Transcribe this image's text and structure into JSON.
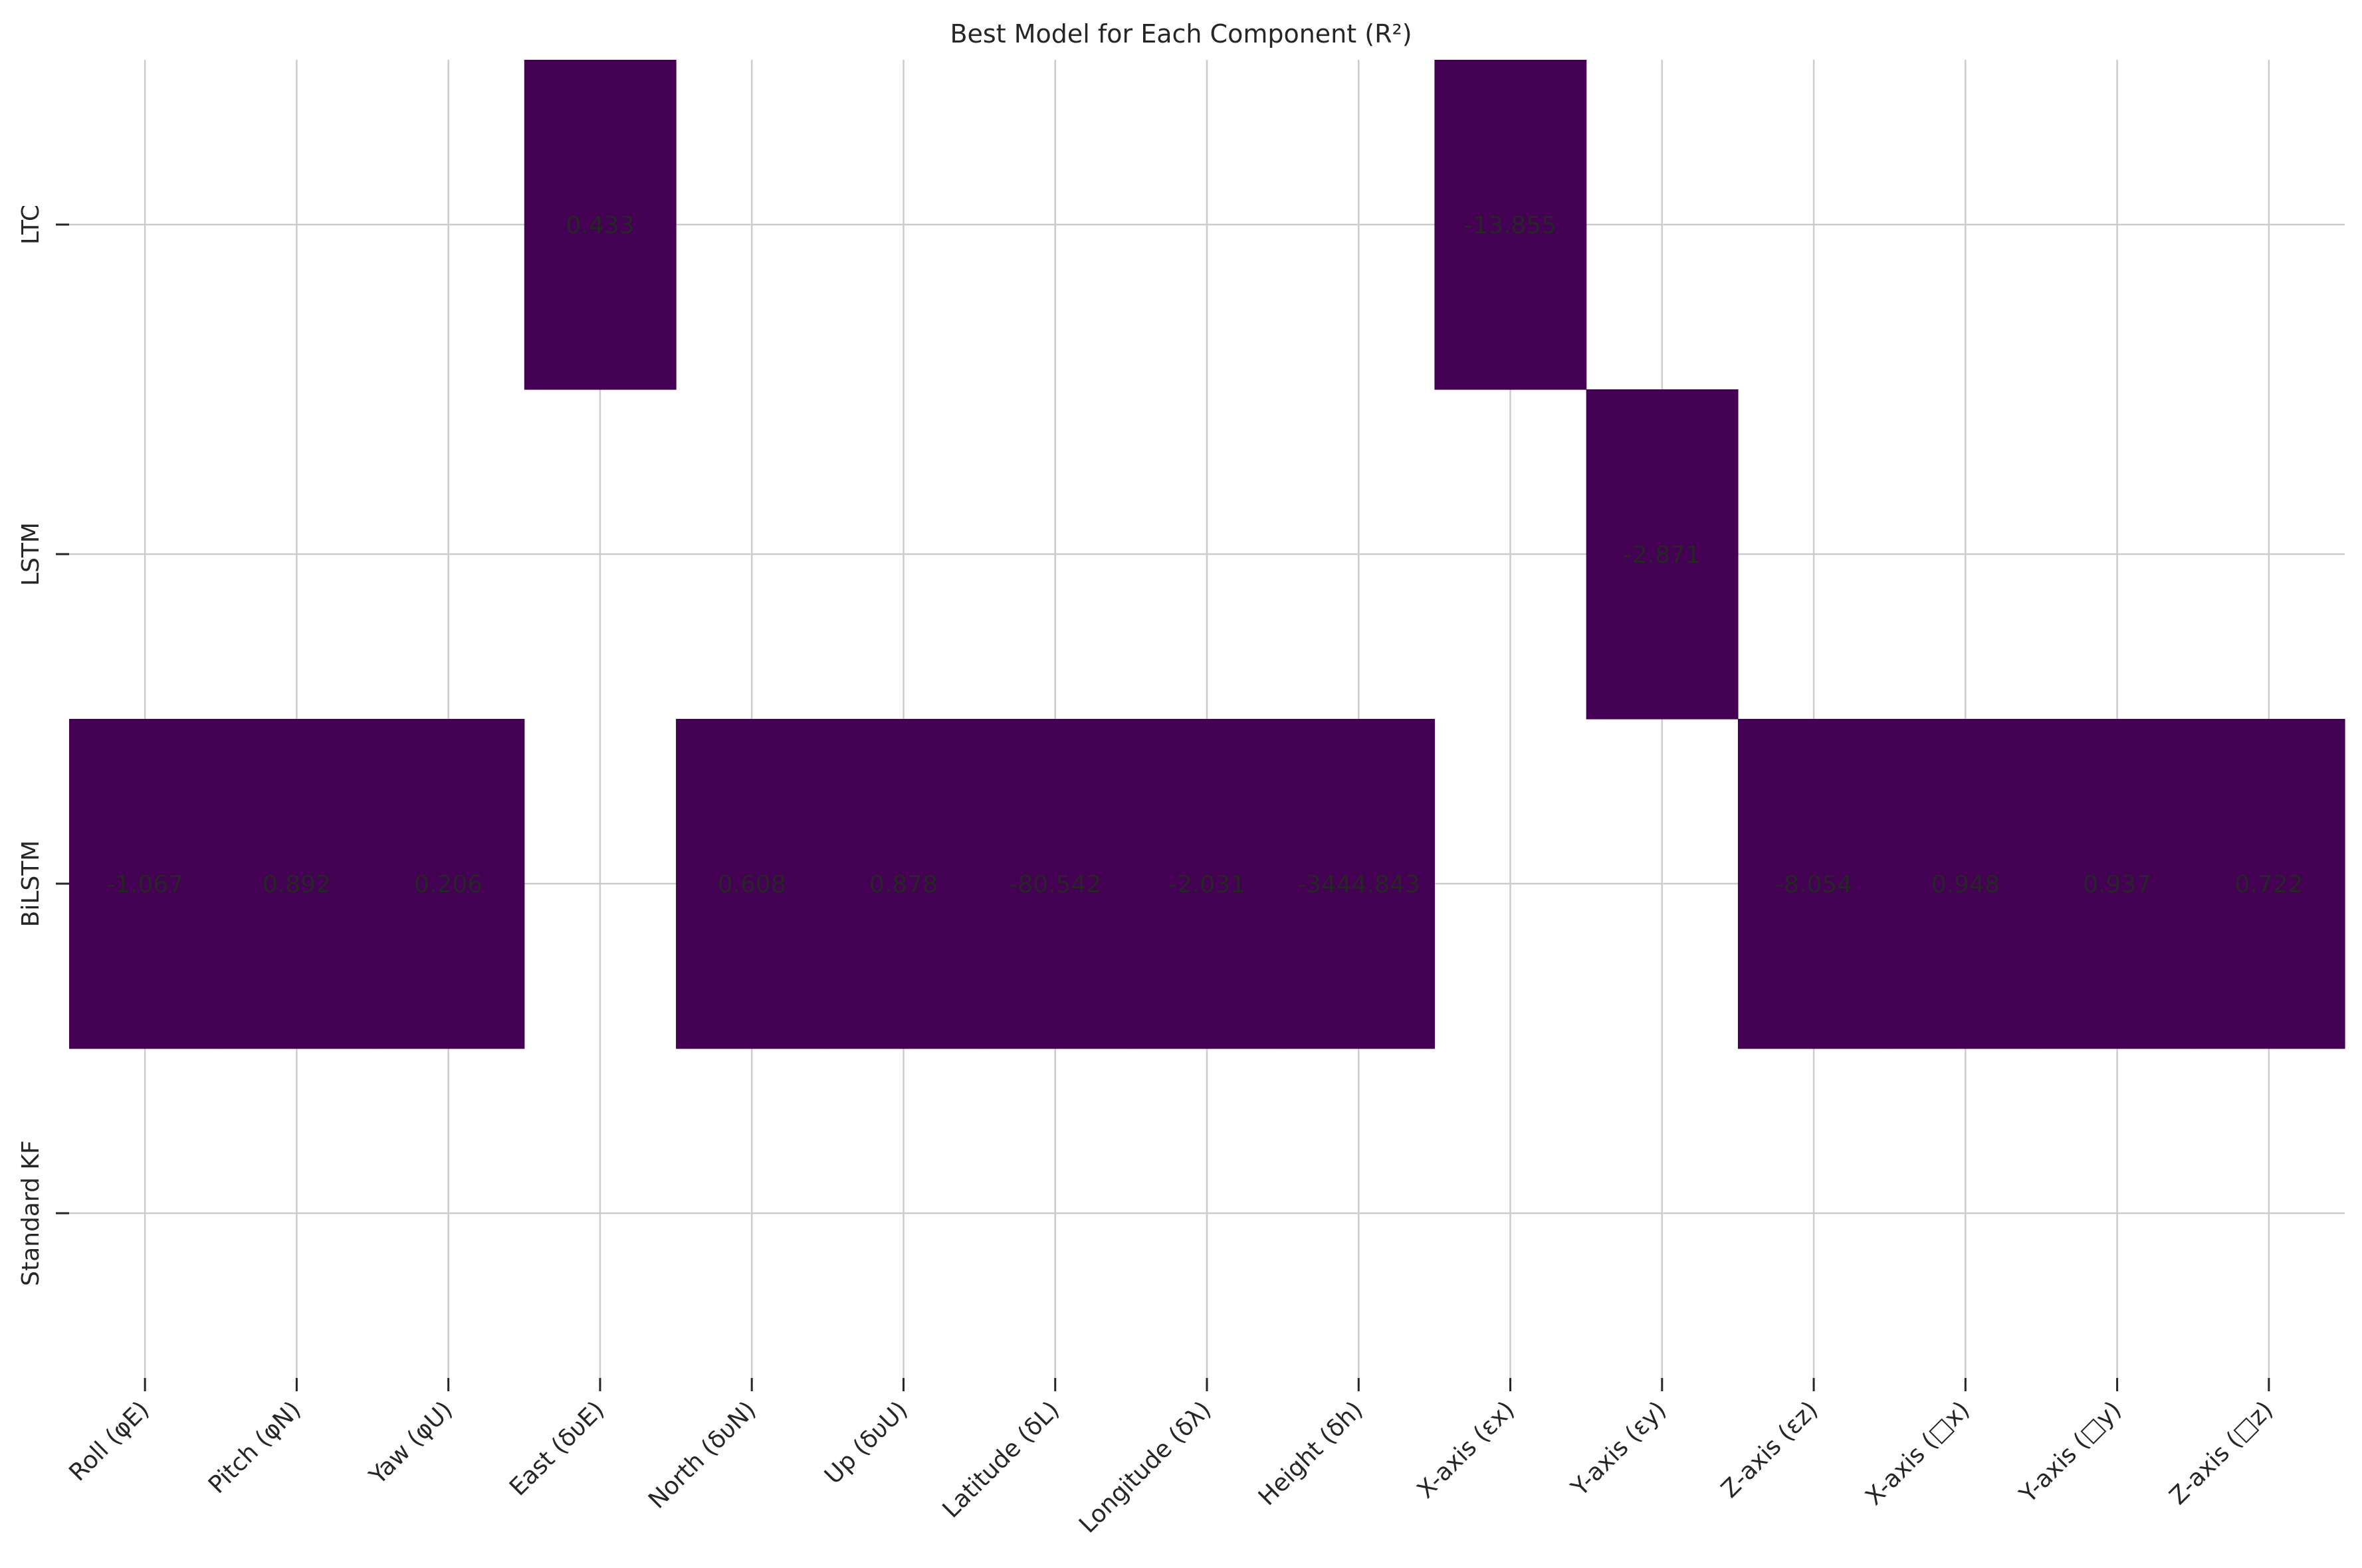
{
  "chart_data": {
    "type": "heatmap",
    "title": "Best Model for Each Component (R²)",
    "xlabel": "",
    "ylabel": "",
    "x_categories": [
      "Roll (φE)",
      "Pitch (φN)",
      "Yaw (φU)",
      "East (δυE)",
      "North (δυN)",
      "Up (δυU)",
      "Latitude (δL)",
      "Longitude (δλ)",
      "Height (δh)",
      "X-axis (εx)",
      "Y-axis (εy)",
      "Z-axis (εz)",
      "X-axis (□x)",
      "Y-axis (□y)",
      "Z-axis (□z)"
    ],
    "y_categories": [
      "LTC",
      "LSTM",
      "BiLSTM",
      "Standard KF"
    ],
    "cells": [
      {
        "x": "Roll (φE)",
        "y": "BiLSTM",
        "value": "-1.067"
      },
      {
        "x": "Pitch (φN)",
        "y": "BiLSTM",
        "value": "0.892"
      },
      {
        "x": "Yaw (φU)",
        "y": "BiLSTM",
        "value": "0.206"
      },
      {
        "x": "East (δυE)",
        "y": "LTC",
        "value": "0.433"
      },
      {
        "x": "North (δυN)",
        "y": "BiLSTM",
        "value": "0.608"
      },
      {
        "x": "Up (δυU)",
        "y": "BiLSTM",
        "value": "0.878"
      },
      {
        "x": "Latitude (δL)",
        "y": "BiLSTM",
        "value": "-80.542"
      },
      {
        "x": "Longitude (δλ)",
        "y": "BiLSTM",
        "value": "-2.031"
      },
      {
        "x": "Height (δh)",
        "y": "BiLSTM",
        "value": "-3444.843"
      },
      {
        "x": "X-axis (εx)",
        "y": "LTC",
        "value": "-13.855"
      },
      {
        "x": "Y-axis (εy)",
        "y": "LSTM",
        "value": "-2.871"
      },
      {
        "x": "Z-axis (εz)",
        "y": "BiLSTM",
        "value": "-8.054"
      },
      {
        "x": "X-axis (□x)",
        "y": "BiLSTM",
        "value": "0.948"
      },
      {
        "x": "Y-axis (□y)",
        "y": "BiLSTM",
        "value": "0.937"
      },
      {
        "x": "Z-axis (□z)",
        "y": "BiLSTM",
        "value": "0.722"
      }
    ],
    "cell_color": "#440154",
    "grid": true,
    "legend": "none"
  }
}
